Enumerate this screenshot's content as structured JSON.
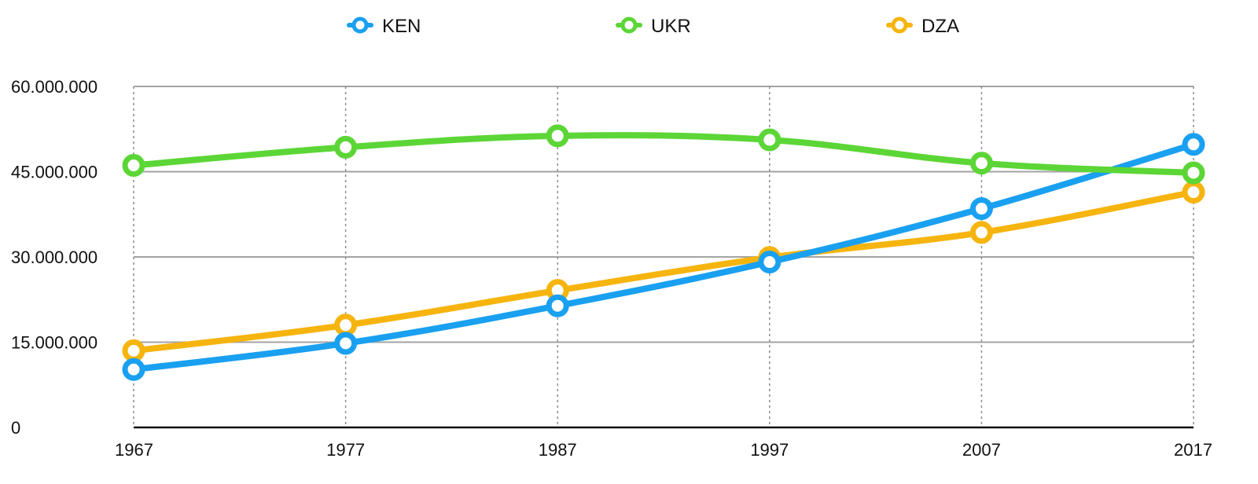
{
  "chart_data": {
    "type": "line",
    "x": [
      1967,
      1977,
      1987,
      1997,
      2007,
      2017
    ],
    "x_tick_labels": [
      "1967",
      "1977",
      "1987",
      "1997",
      "2007",
      "2017"
    ],
    "y_tick_labels": [
      "0",
      "15.000.000",
      "30.000.000",
      "45.000.000",
      "60.000.000"
    ],
    "y_ticks": [
      0,
      15000000,
      30000000,
      45000000,
      60000000
    ],
    "ylim": [
      0,
      60000000
    ],
    "grid": true,
    "legend_position": "top-center",
    "series": [
      {
        "name": "KEN",
        "color": "#1aa0f0",
        "values": [
          10200000,
          14800000,
          21400000,
          29100000,
          38500000,
          49800000
        ]
      },
      {
        "name": "UKR",
        "color": "#5cd636",
        "values": [
          46100000,
          49300000,
          51300000,
          50600000,
          46500000,
          44800000
        ]
      },
      {
        "name": "DZA",
        "color": "#f6b40e",
        "values": [
          13500000,
          18000000,
          24100000,
          29900000,
          34300000,
          41400000
        ]
      }
    ]
  }
}
